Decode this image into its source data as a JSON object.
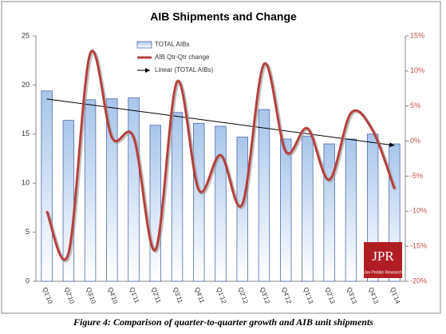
{
  "chart_data": {
    "type": "bar-line",
    "title": "AIB Shipments and Change",
    "categories": [
      "Q1'10",
      "Q2'10",
      "Q3'10",
      "Q4'10",
      "Q1'11",
      "Q2'11",
      "Q3'11",
      "Q4'11",
      "Q1'12",
      "Q2'12",
      "Q3'12",
      "Q4'12",
      "Q1'13",
      "Q2'13",
      "Q3'13",
      "Q4'13",
      "Q1'14"
    ],
    "series": [
      {
        "name": "TOTAL AIBs",
        "color": "#a9c4eb",
        "values": [
          19.4,
          16.4,
          18.5,
          18.6,
          18.7,
          15.9,
          17.2,
          16.1,
          15.8,
          14.7,
          17.5,
          14.5,
          14.8,
          14.0,
          14.5,
          15.0,
          14.0
        ]
      },
      {
        "name": "AIB Qtr-Qtr  change",
        "color": "#b5403c",
        "axis": "y2",
        "values": [
          -10,
          -16,
          12.5,
          0.5,
          0.5,
          -15.5,
          8.5,
          -7,
          -2,
          -9,
          11,
          -1.5,
          1.8,
          -5.5,
          4,
          1.5,
          -6.8
        ]
      }
    ],
    "trendline": {
      "name": "Linear (TOTAL AIBs)",
      "color": "#000000"
    },
    "ylim": [
      0,
      25
    ],
    "yticks": [
      0,
      5,
      10,
      15,
      20,
      25
    ],
    "y2lim": [
      -20,
      15
    ],
    "y2ticks": [
      {
        "value": -20,
        "label": "-20%"
      },
      {
        "value": -15,
        "label": "-15%"
      },
      {
        "value": -10,
        "label": "-10%"
      },
      {
        "value": -5,
        "label": "-5%"
      },
      {
        "value": 0,
        "label": "0%"
      },
      {
        "value": 5,
        "label": "5%"
      },
      {
        "value": 10,
        "label": "10%"
      },
      {
        "value": 15,
        "label": "15%"
      }
    ],
    "y2_color": "#c0504d",
    "grid": false
  },
  "logo": {
    "text": "JPR",
    "subtext": "Jon Peddie Research"
  },
  "caption": "Figure 4: Comparison of quarter-to-quarter growth and AIB unit shipments"
}
